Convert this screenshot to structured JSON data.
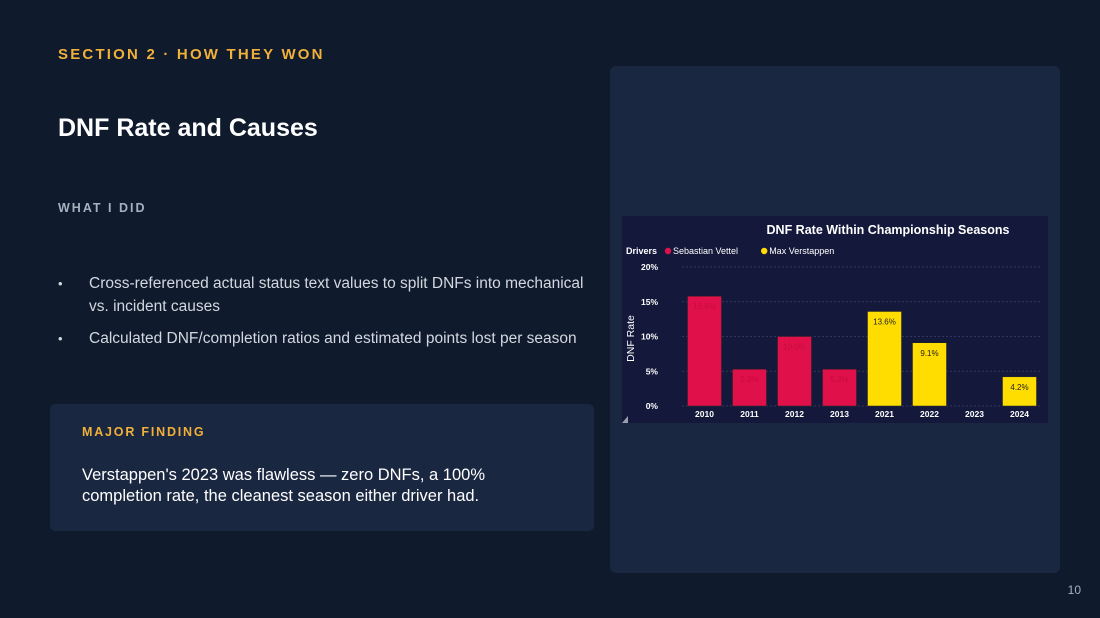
{
  "slide": {
    "section": "SECTION 2 · HOW THEY WON",
    "title": "DNF Rate and Causes",
    "subheading": "WHAT I DID",
    "bullets": [
      "Cross-referenced actual status text values to split DNFs into mechanical vs. incident causes",
      "Calculated DNF/completion ratios and estimated points lost per season"
    ],
    "finding_label": "MAJOR FINDING",
    "finding_text": "Verstappen's 2023 was flawless — zero DNFs, a 100% completion rate, the cleanest season either driver had.",
    "page_number": "10",
    "bullet_glyph": "•"
  },
  "chart_data": {
    "type": "bar",
    "title": "DNF Rate Within Championship Seasons",
    "legend_title": "Drivers",
    "legend_position": "top-left",
    "ylabel": "DNF Rate",
    "xlabel": "",
    "ylim": [
      0,
      20
    ],
    "yticks": [
      "0%",
      "5%",
      "10%",
      "15%",
      "20%"
    ],
    "grid": true,
    "categories": [
      "2010",
      "2011",
      "2012",
      "2013",
      "2021",
      "2022",
      "2023",
      "2024"
    ],
    "series": [
      {
        "name": "Sebastian Vettel",
        "color": "#e0104a",
        "values": [
          15.8,
          5.3,
          10.0,
          5.3,
          null,
          null,
          null,
          null
        ],
        "labels": [
          "15.8%",
          "5.3%",
          "10.0%",
          "5.3%",
          "",
          "",
          "",
          ""
        ]
      },
      {
        "name": "Max Verstappen",
        "color": "#ffdd00",
        "values": [
          null,
          null,
          null,
          null,
          13.6,
          9.1,
          0,
          4.2
        ],
        "labels": [
          "",
          "",
          "",
          "",
          "13.6%",
          "9.1%",
          "",
          "4.2%"
        ]
      }
    ]
  },
  "colors": {
    "background": "#0f1a2c",
    "card": "#1a2740",
    "accent": "#f0b03a",
    "chart_bg": "#14193b"
  }
}
